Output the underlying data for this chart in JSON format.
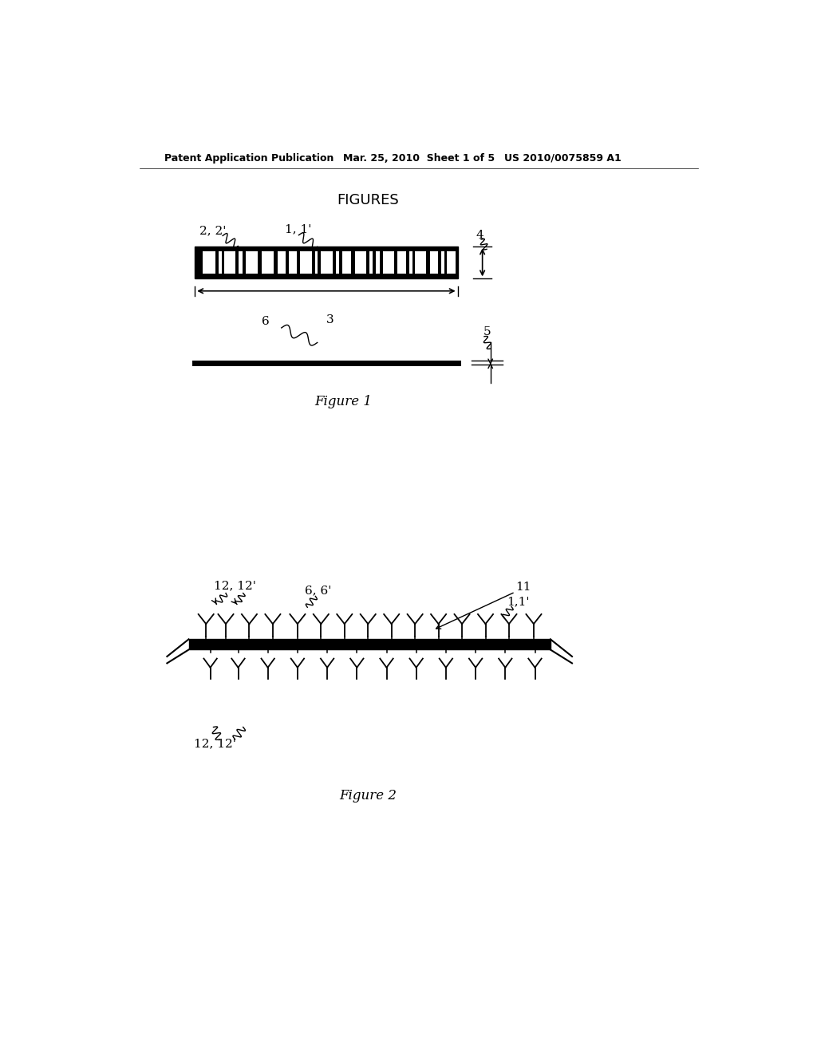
{
  "bg_color": "#ffffff",
  "header_left": "Patent Application Publication",
  "header_mid": "Mar. 25, 2010  Sheet 1 of 5",
  "header_right": "US 2010/0075859 A1",
  "title_text": "FIGURES",
  "fig1_label": "Figure 1",
  "fig2_label": "Figure 2",
  "label_2_2prime": "2, 2'",
  "label_1_1prime_f1": "1, 1'",
  "label_4": "4",
  "label_6_f1": "6",
  "label_3": "3",
  "label_5": "5",
  "label_11": "11",
  "label_12_12prime_top": "12, 12'",
  "label_6_6prime": "6, 6'",
  "label_1_1prime_f2": "1,1'",
  "label_12_12prime_bot": "12, 12'"
}
